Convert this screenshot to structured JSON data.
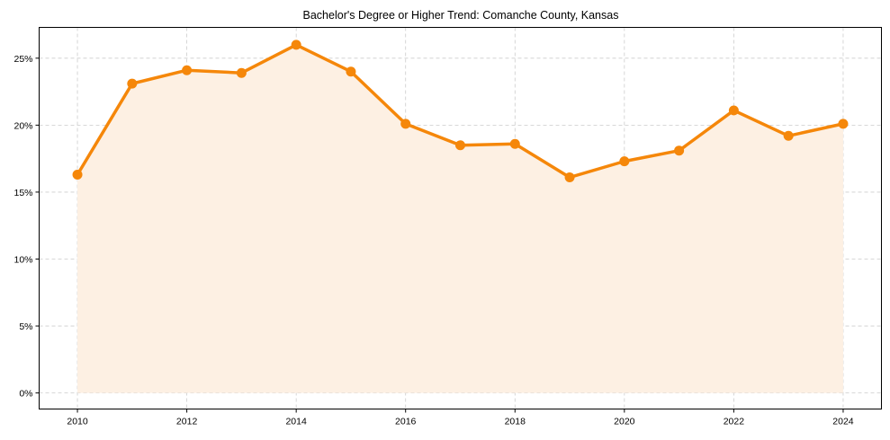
{
  "chart_data": {
    "type": "line",
    "title": "Bachelor's Degree or Higher Trend: Comanche County, Kansas",
    "xlabel": "",
    "ylabel": "",
    "x": [
      2010,
      2011,
      2012,
      2013,
      2014,
      2015,
      2016,
      2017,
      2018,
      2019,
      2020,
      2021,
      2022,
      2023,
      2024
    ],
    "series": [
      {
        "name": "Bachelor's Degree or Higher",
        "values": [
          16.3,
          23.1,
          24.1,
          23.9,
          26.0,
          24.0,
          20.1,
          18.5,
          18.6,
          16.1,
          17.3,
          18.1,
          21.1,
          19.2,
          20.1
        ],
        "color": "#f5870a",
        "fill_color": "#fdf0e3",
        "marker": "circle",
        "area_fill": true
      }
    ],
    "x_ticks": [
      2010,
      2012,
      2014,
      2016,
      2018,
      2020,
      2022,
      2024
    ],
    "x_tick_labels": [
      "2010",
      "2012",
      "2014",
      "2016",
      "2018",
      "2020",
      "2022",
      "2024"
    ],
    "y_ticks": [
      0,
      5,
      10,
      15,
      20,
      25
    ],
    "y_tick_labels": [
      "0%",
      "5%",
      "10%",
      "15%",
      "20%",
      "25%"
    ],
    "xlim": [
      2009.3,
      2024.7
    ],
    "ylim": [
      -1.2,
      27.3
    ],
    "grid": true,
    "legend": null
  }
}
